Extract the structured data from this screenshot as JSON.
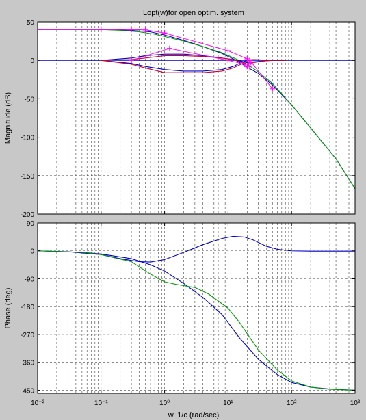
{
  "title": "Lopt(w)for open optim. system",
  "xlabel": "w, 1/c  (rad/sec)",
  "colors": {
    "background": "#c8c8c8",
    "axes_bg": "#ffffff",
    "grid": "#404040",
    "blue": "#0000cc",
    "green": "#009900",
    "red": "#cc0033",
    "magenta": "#ff00ff"
  },
  "chart_data": [
    {
      "type": "line",
      "panel": "magnitude",
      "ylabel": "Magnitude (dB)",
      "xscale": "log",
      "xlim": [
        0.01,
        1000
      ],
      "ylim": [
        -200,
        50
      ],
      "yticks": [
        50,
        0,
        -50,
        -100,
        -150,
        -200
      ],
      "grid": true,
      "series": [
        {
          "color": "blue",
          "marker": "none",
          "x": [
            0.01,
            0.1,
            0.3,
            0.6,
            1,
            2,
            4,
            8,
            12,
            16,
            20,
            30,
            50,
            100,
            200,
            500,
            1000
          ],
          "y": [
            40,
            40,
            39,
            37,
            33,
            26,
            18,
            9,
            2,
            -4,
            -9,
            -17,
            -32,
            -58,
            -88,
            -128,
            -167
          ]
        },
        {
          "color": "green",
          "marker": "none",
          "x": [
            0.01,
            0.1,
            0.2,
            0.4,
            0.7,
            1,
            2,
            4,
            8,
            15,
            20,
            30,
            50,
            100,
            200,
            500,
            1000
          ],
          "y": [
            40,
            40,
            39,
            37,
            34,
            31,
            25,
            18,
            10,
            0,
            -5,
            -15,
            -30,
            -58,
            -88,
            -128,
            -167
          ]
        },
        {
          "color": "blue",
          "marker": "none",
          "x": [
            0.1,
            0.3,
            0.5,
            1,
            2,
            4,
            8,
            12,
            16,
            20,
            25,
            35,
            50,
            80
          ],
          "y": [
            0,
            -4,
            -8,
            -12,
            -14,
            -14,
            -12,
            -8,
            -3,
            0,
            1,
            0.5,
            0,
            0
          ]
        },
        {
          "color": "red",
          "marker": "none",
          "x": [
            0.1,
            0.3,
            0.5,
            1,
            2,
            4,
            8,
            12,
            16,
            20,
            25,
            35,
            50,
            80
          ],
          "y": [
            0,
            -5,
            -10,
            -16,
            -16,
            -16,
            -14,
            -10,
            -5,
            -1,
            1,
            0.5,
            0,
            0
          ]
        },
        {
          "color": "blue",
          "marker": "none",
          "x": [
            0.1,
            0.3,
            0.5,
            1,
            2,
            4,
            8,
            12,
            16,
            20,
            25,
            35,
            50,
            80
          ],
          "y": [
            0,
            3,
            6,
            8,
            8,
            6,
            3,
            1,
            -1,
            -3,
            -2,
            -1,
            0,
            0
          ]
        },
        {
          "color": "red",
          "marker": "none",
          "x": [
            0.1,
            0.3,
            0.5,
            1,
            2,
            4,
            8,
            12,
            16,
            20,
            25,
            35,
            50,
            80
          ],
          "y": [
            0,
            1,
            3,
            6,
            6,
            5,
            3,
            1,
            -2,
            -5,
            -3,
            -1,
            0,
            0
          ]
        },
        {
          "color": "magenta",
          "marker": "+",
          "x": [
            0.01,
            0.1,
            0.3,
            0.5,
            1,
            10,
            20,
            22,
            23,
            50
          ],
          "y": [
            40,
            40,
            40,
            39.5,
            35.5,
            12.5,
            2,
            -10,
            -2,
            -37
          ]
        },
        {
          "color": "magenta",
          "marker": "+",
          "x": [
            0.3,
            1.2,
            10,
            18,
            20,
            22
          ],
          "y": [
            0,
            15.5,
            0,
            -5,
            -8,
            0
          ]
        }
      ]
    },
    {
      "type": "line",
      "panel": "phase",
      "ylabel": "Phase (deg)",
      "xscale": "log",
      "xlim": [
        0.01,
        1000
      ],
      "ylim": [
        -460,
        90
      ],
      "yticks": [
        90,
        0,
        -90,
        -180,
        -270,
        -360,
        -450
      ],
      "xticks": [
        "10^-2",
        "10^-1",
        "10^0",
        "10^1",
        "10^2",
        "10^3"
      ],
      "grid": true,
      "series": [
        {
          "color": "blue",
          "marker": "none",
          "x": [
            0.01,
            0.03,
            0.1,
            0.2,
            0.4,
            0.6,
            1,
            2,
            4,
            8,
            12,
            18,
            25,
            40,
            60,
            100,
            200,
            1000
          ],
          "y": [
            0,
            -3,
            -12,
            -25,
            -35,
            -36,
            -28,
            -5,
            20,
            40,
            47,
            45,
            35,
            15,
            5,
            0,
            -1,
            -1
          ]
        },
        {
          "color": "blue",
          "marker": "none",
          "x": [
            0.01,
            0.05,
            0.1,
            0.3,
            0.6,
            1,
            2,
            4,
            8,
            15,
            30,
            60,
            100,
            200,
            400,
            1000
          ],
          "y": [
            0,
            -5,
            -10,
            -25,
            -45,
            -65,
            -105,
            -150,
            -205,
            -280,
            -350,
            -400,
            -425,
            -440,
            -446,
            -450
          ]
        },
        {
          "color": "green",
          "marker": "none",
          "x": [
            0.01,
            0.05,
            0.1,
            0.3,
            0.6,
            1,
            1.5,
            3,
            5,
            10,
            15,
            30,
            60,
            100,
            200,
            400,
            1000
          ],
          "y": [
            0,
            -5,
            -12,
            -35,
            -75,
            -100,
            -108,
            -118,
            -140,
            -185,
            -230,
            -320,
            -385,
            -420,
            -440,
            -447,
            -450
          ]
        }
      ]
    }
  ]
}
